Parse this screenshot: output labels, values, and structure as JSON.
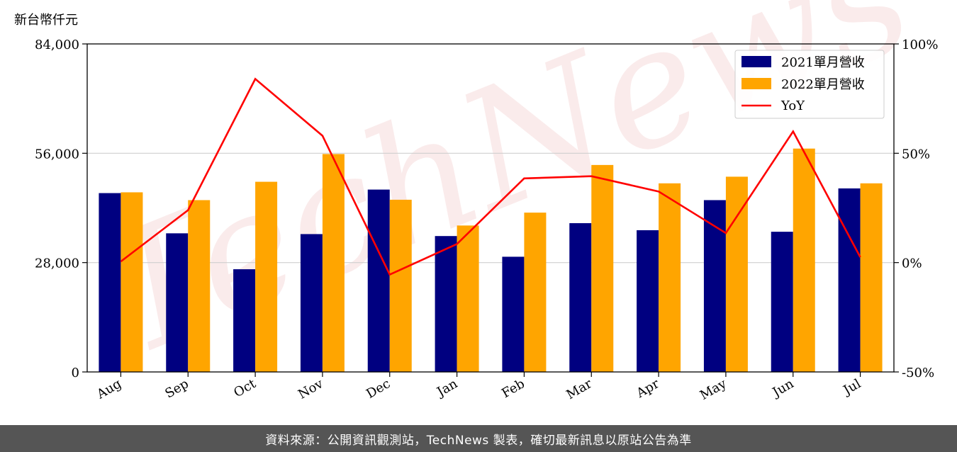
{
  "chart_data": {
    "type": "bar+line",
    "y_unit_label": "新台幣仟元",
    "categories": [
      "Aug",
      "Sep",
      "Oct",
      "Nov",
      "Dec",
      "Jan",
      "Feb",
      "Mar",
      "Apr",
      "May",
      "Jun",
      "Jul"
    ],
    "series": [
      {
        "name": "2021單月營收",
        "type": "bar",
        "axis": "left",
        "color": "#000080",
        "values": [
          45800,
          35500,
          26300,
          35300,
          46700,
          34800,
          29500,
          38100,
          36300,
          44000,
          35900,
          47000
        ]
      },
      {
        "name": "2022單月營收",
        "type": "bar",
        "axis": "left",
        "color": "#FFA500",
        "values": [
          46000,
          44000,
          48700,
          55800,
          44100,
          37500,
          40800,
          53000,
          48300,
          50000,
          57200,
          48300
        ]
      },
      {
        "name": "YoY",
        "type": "line",
        "axis": "right",
        "color": "#FF0000",
        "values": [
          0.5,
          24,
          84,
          58,
          -5.5,
          8.5,
          38.5,
          39.5,
          32.5,
          13.5,
          60,
          2.5
        ]
      }
    ],
    "left_axis": {
      "ylim": [
        0,
        84000
      ],
      "ticks": [
        0,
        28000,
        56000,
        84000
      ],
      "tick_labels": [
        "0",
        "28,000",
        "56,000",
        "84,000"
      ]
    },
    "right_axis": {
      "ylim": [
        -50,
        100
      ],
      "ticks": [
        -50,
        0,
        50,
        100
      ],
      "tick_labels": [
        "-50%",
        "0%",
        "50%",
        "100%"
      ]
    },
    "grid": "horizontal",
    "legend_position": "top-right"
  },
  "watermark": "TechNews",
  "footer_text": "資料來源：公開資訊觀測站，TechNews 製表，確切最新訊息以原站公告為準"
}
